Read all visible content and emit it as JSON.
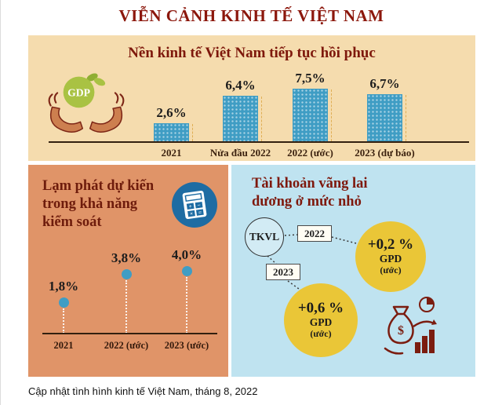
{
  "title": "VIỄN CẢNH KINH TẾ VIỆT NAM",
  "footer": "Cập nhật tình hình kinh tế Việt Nam, tháng 8, 2022",
  "gdp_panel": {
    "heading": "Nền kinh tế Việt Nam tiếp tục hồi phục",
    "icon_label": "GDP"
  },
  "inflation_panel": {
    "heading": "Lạm phát dự kiến trong khả năng kiểm soát"
  },
  "current_account_panel": {
    "heading": "Tài khoản vãng lai dương ở mức nhỏ",
    "node": "TKVL",
    "box_2022": "2022",
    "box_2023": "2023",
    "bubble_2022": {
      "value": "+0,2 %",
      "unit": "GPD",
      "note": "(ước)"
    },
    "bubble_2023": {
      "value": "+0,6 %",
      "unit": "GPD",
      "note": "(ước)"
    }
  },
  "icons": {
    "gdp_hands": "hands-holding-gdp",
    "calculator": "calculator",
    "money_growth": "money-bag-with-growth-chart",
    "calc_symbols": [
      "+",
      "−",
      "×",
      "="
    ],
    "dollar": "$"
  },
  "colors": {
    "title_text": "#8c170c",
    "top_panel_bg": "#f5dcae",
    "left_panel_bg": "#e09468",
    "right_panel_bg": "#bfe3f0",
    "bar_fill": "#3f9dc4",
    "bubble_fill": "#eac637",
    "calculator_bg": "#1e6ca3",
    "gdp_circle": "#a9c243",
    "icon_maroon": "#7b1d10"
  },
  "chart_data": [
    {
      "type": "bar",
      "title": "Nền kinh tế Việt Nam tiếp tục hồi phục",
      "categories": [
        "2021",
        "Nửa đầu 2022",
        "2022 (ước)",
        "2023 (dự báo)"
      ],
      "values": [
        2.6,
        6.4,
        7.5,
        6.7
      ],
      "labels": [
        "2,6%",
        "6,4%",
        "7,5%",
        "6,7%"
      ],
      "unit": "%",
      "ylim": [
        0,
        8
      ],
      "legend": false
    },
    {
      "type": "scatter",
      "title": "Lạm phát dự kiến trong khả năng kiểm soát",
      "categories": [
        "2021",
        "2022 (ước)",
        "2023 (ước)"
      ],
      "values": [
        1.8,
        3.8,
        4.0
      ],
      "labels": [
        "1,8%",
        "3,8%",
        "4,0%"
      ],
      "unit": "%",
      "ylim": [
        0,
        5
      ],
      "legend": false
    },
    {
      "type": "table",
      "title": "Tài khoản vãng lai dương ở mức nhỏ",
      "categories": [
        "2022",
        "2023"
      ],
      "values": [
        0.2,
        0.6
      ],
      "labels": [
        "+0,2 % GPD (ước)",
        "+0,6 % GPD (ước)"
      ],
      "unit": "% GPD"
    }
  ]
}
